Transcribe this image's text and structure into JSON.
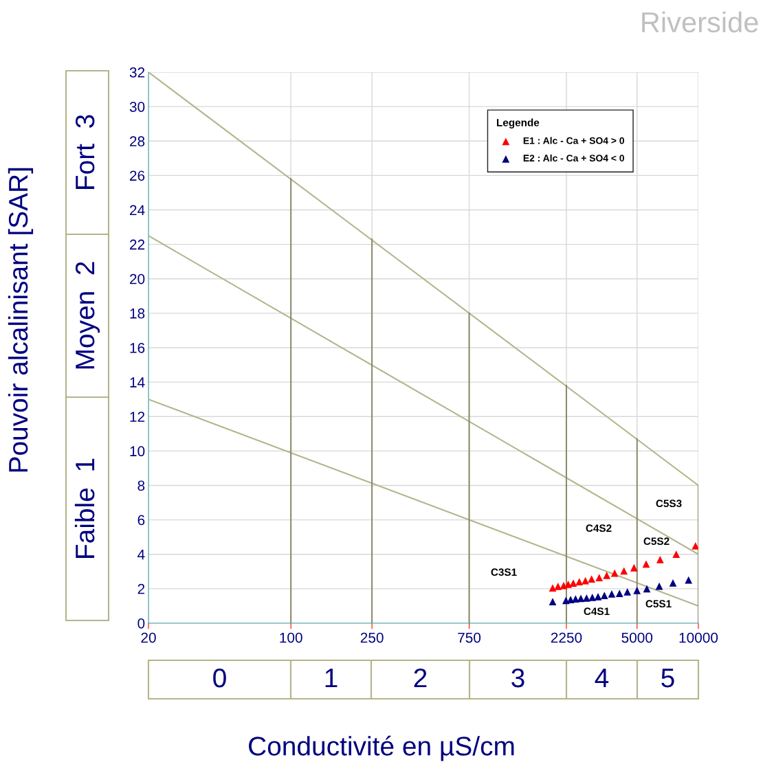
{
  "chart_data": {
    "type": "scatter",
    "title": "Riverside",
    "xlabel": "Conductivité en µS/cm",
    "ylabel": "Pouvoir alcalinisant [SAR]",
    "legend_title": "Legende",
    "log": "x",
    "grid": true,
    "legend": "top right",
    "marker": "triangle",
    "xlim": [
      20,
      10000
    ],
    "xticks": [
      20,
      100,
      250,
      750,
      2250,
      5000,
      10000
    ],
    "ylim": [
      0,
      32
    ],
    "yticks": [
      0,
      2,
      4,
      6,
      8,
      10,
      12,
      14,
      16,
      18,
      20,
      22,
      24,
      26,
      28,
      30,
      32
    ],
    "series": [
      {
        "name": "E1 : Alc - Ca + SO4 > 0",
        "color": "#ff0000",
        "x": [
          1927,
          2046,
          2182,
          2297,
          2433,
          2603,
          2790,
          2992,
          3260,
          3551,
          3882,
          4313,
          4832,
          5543,
          6490,
          7785,
          9680
        ],
        "values": [
          2.05,
          2.14,
          2.19,
          2.26,
          2.33,
          2.41,
          2.47,
          2.57,
          2.65,
          2.78,
          2.91,
          3.04,
          3.22,
          3.43,
          3.69,
          4.0,
          4.49
        ]
      },
      {
        "name": "E2 : Alc - Ca + SO4 < 0",
        "color": "#000080",
        "x": [
          1927,
          2239,
          2360,
          2496,
          2650,
          2826,
          3016,
          3217,
          3457,
          3756,
          4102,
          4483,
          4998,
          5585,
          6427,
          7502,
          8951
        ],
        "values": [
          1.25,
          1.32,
          1.37,
          1.41,
          1.44,
          1.46,
          1.5,
          1.54,
          1.61,
          1.7,
          1.73,
          1.82,
          1.9,
          2.0,
          2.15,
          2.34,
          2.51
        ]
      },
      {
        "type": "line",
        "color": "#b4b48c",
        "marker": "none",
        "x": [
          20,
          10000
        ],
        "values": [
          32,
          8
        ]
      },
      {
        "type": "line",
        "color": "#b4b48c",
        "marker": "none",
        "x": [
          20,
          10000
        ],
        "values": [
          22.5,
          4
        ]
      },
      {
        "type": "line",
        "color": "#b4b48c",
        "marker": "none",
        "x": [
          20,
          10000
        ],
        "values": [
          13,
          1
        ]
      },
      {
        "type": "line",
        "color": "#8c8c6e",
        "marker": "none",
        "x": [
          100,
          100
        ],
        "values": [
          0,
          25.8
        ]
      },
      {
        "type": "line",
        "color": "#8c8c6e",
        "marker": "none",
        "x": [
          250,
          250
        ],
        "values": [
          0,
          22.3
        ]
      },
      {
        "type": "line",
        "color": "#8c8c6e",
        "marker": "none",
        "x": [
          750,
          750
        ],
        "values": [
          0,
          18
        ]
      },
      {
        "type": "line",
        "color": "#8c8c6e",
        "marker": "none",
        "x": [
          2250,
          2250
        ],
        "values": [
          0,
          13.8
        ]
      },
      {
        "type": "line",
        "color": "#8c8c6e",
        "marker": "none",
        "x": [
          5000,
          5000
        ],
        "values": [
          0,
          10.7
        ]
      },
      {
        "type": "line",
        "color": "#8c8c6e",
        "marker": "none",
        "x": [
          10000,
          10000
        ],
        "values": [
          0,
          8
        ]
      }
    ],
    "annotations": [
      "C3S1",
      "C4S2",
      "C5S2",
      "C5S3",
      "C4S1",
      "C5S1",
      "0",
      "1",
      "2",
      "3",
      "4",
      "5",
      "Faible  1",
      "Moyen  2",
      "Fort  3"
    ]
  }
}
